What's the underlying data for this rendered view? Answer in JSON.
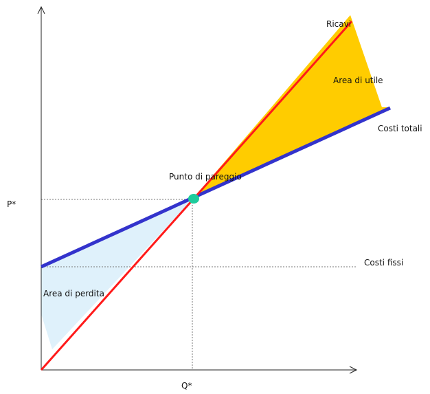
{
  "labels": {
    "revenue": "Ricavi",
    "profit_area": "Area di utile",
    "total_costs": "Costi totali",
    "break_even_point": "Punto di pareggio",
    "p_star": "P*",
    "fixed_costs": "Costi fissi",
    "loss_area": "Area di perdita",
    "q_star": "Q*"
  },
  "colors": {
    "revenue_line": "#ff1a1a",
    "total_costs_line": "#3333cc",
    "profit_area": "#ffcc00",
    "loss_area": "#dff1fb",
    "break_even_point": "#1ecb9c",
    "axes": "#222222",
    "guide_lines": "#777777"
  }
}
